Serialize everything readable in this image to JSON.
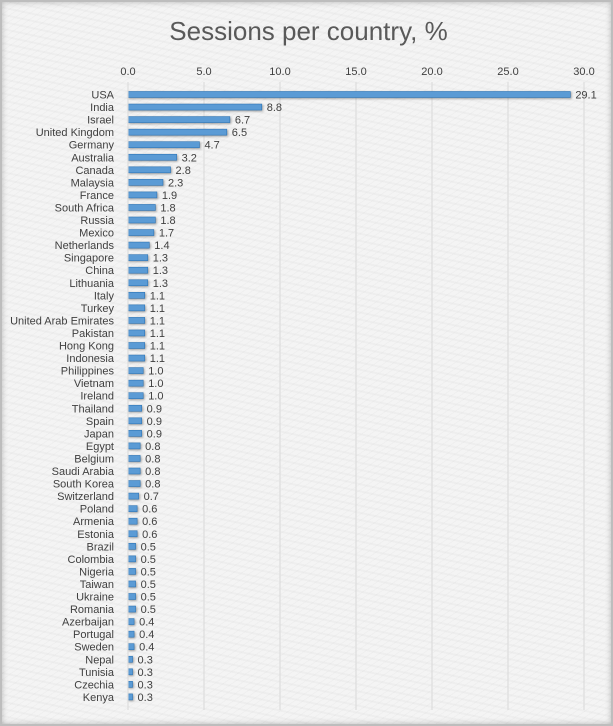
{
  "chart_data": {
    "type": "bar",
    "orientation": "horizontal",
    "title": "Sessions per country, %",
    "xlim": [
      0,
      30
    ],
    "xticks": [
      "0.0",
      "5.0",
      "10.0",
      "15.0",
      "20.0",
      "25.0",
      "30.0"
    ],
    "xaxis_position": "top",
    "grid": true,
    "bar_color": "#5b9bd5",
    "categories": [
      "USA",
      "India",
      "Israel",
      "United Kingdom",
      "Germany",
      "Australia",
      "Canada",
      "Malaysia",
      "France",
      "South Africa",
      "Russia",
      "Mexico",
      "Netherlands",
      "Singapore",
      "China",
      "Lithuania",
      "Italy",
      "Turkey",
      "United Arab Emirates",
      "Pakistan",
      "Hong Kong",
      "Indonesia",
      "Philippines",
      "Vietnam",
      "Ireland",
      "Thailand",
      "Spain",
      "Japan",
      "Egypt",
      "Belgium",
      "Saudi Arabia",
      "South Korea",
      "Switzerland",
      "Poland",
      "Armenia",
      "Estonia",
      "Brazil",
      "Colombia",
      "Nigeria",
      "Taiwan",
      "Ukraine",
      "Romania",
      "Azerbaijan",
      "Portugal",
      "Sweden",
      "Nepal",
      "Tunisia",
      "Czechia",
      "Kenya"
    ],
    "values": [
      29.1,
      8.8,
      6.7,
      6.5,
      4.7,
      3.2,
      2.8,
      2.3,
      1.9,
      1.8,
      1.8,
      1.7,
      1.4,
      1.3,
      1.3,
      1.3,
      1.1,
      1.1,
      1.1,
      1.1,
      1.1,
      1.1,
      1.0,
      1.0,
      1.0,
      0.9,
      0.9,
      0.9,
      0.8,
      0.8,
      0.8,
      0.8,
      0.7,
      0.6,
      0.6,
      0.6,
      0.5,
      0.5,
      0.5,
      0.5,
      0.5,
      0.5,
      0.4,
      0.4,
      0.4,
      0.3,
      0.3,
      0.3,
      0.3
    ]
  }
}
